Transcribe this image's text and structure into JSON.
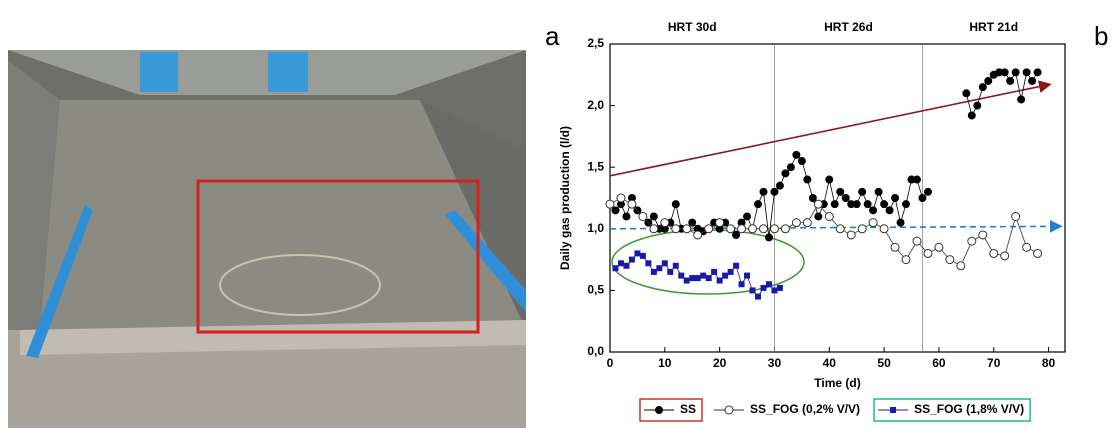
{
  "panel_labels": [
    "a",
    "b"
  ],
  "chart_data": {
    "type": "line",
    "y_label": "Daily gas production (l/d)",
    "x_label": "Time (d)",
    "annotations": [
      "HRT 30d",
      "HRT 26d",
      "HRT 21d"
    ],
    "period_bounds": [
      30,
      57
    ],
    "xlim": [
      0,
      83
    ],
    "xticks": [
      0,
      10,
      20,
      30,
      40,
      50,
      60,
      70,
      80
    ],
    "ylim": [
      0,
      2.5
    ],
    "yticks": [
      {
        "value": 0,
        "label": "0,0"
      },
      {
        "value": 0.5,
        "label": "0,5"
      },
      {
        "value": 1,
        "label": "1,0"
      },
      {
        "value": 1.5,
        "label": "1,5"
      },
      {
        "value": 2,
        "label": "2,0"
      },
      {
        "value": 2.5,
        "label": "2,5"
      }
    ],
    "trends": [
      {
        "color": "#8b1a1a",
        "x": [
          0,
          80
        ],
        "values": [
          1.43,
          2.17
        ]
      },
      {
        "color": "#1f7fd0",
        "x": [
          0,
          82
        ],
        "values": [
          1.0,
          1.02
        ]
      }
    ],
    "series": [
      {
        "name": "SS",
        "color": "#000000",
        "marker": "filled-circle",
        "box": "#c0392b",
        "x": [
          1,
          2,
          3,
          4,
          5,
          6,
          7,
          8,
          9,
          10,
          11,
          12,
          13,
          14,
          15,
          16,
          17,
          18,
          19,
          20,
          21,
          22,
          23,
          24,
          25,
          26,
          27,
          28,
          29,
          30,
          31,
          32,
          33,
          34,
          35,
          36,
          37,
          38,
          39,
          40,
          41,
          42,
          43,
          44,
          45,
          46,
          47,
          48,
          49,
          50,
          51,
          52,
          53,
          54,
          55,
          56,
          57,
          58,
          61,
          65,
          66,
          67,
          68,
          69,
          70,
          71,
          72,
          73,
          74,
          75,
          76,
          77,
          78
        ],
        "values": [
          1.15,
          1.2,
          1.1,
          1.25,
          1.15,
          1.1,
          1.05,
          1.1,
          1.0,
          1.0,
          1.05,
          1.2,
          1.0,
          1.0,
          1.05,
          1.0,
          0.98,
          1.0,
          1.05,
          1.0,
          1.05,
          1.0,
          0.95,
          1.05,
          1.1,
          1.0,
          1.2,
          1.3,
          0.93,
          1.3,
          1.35,
          1.45,
          1.5,
          1.6,
          1.55,
          1.4,
          1.25,
          1.1,
          1.2,
          1.4,
          1.2,
          1.3,
          1.25,
          1.2,
          1.2,
          1.3,
          1.2,
          1.15,
          1.3,
          1.2,
          1.15,
          1.25,
          1.05,
          1.2,
          1.4,
          1.4,
          1.25,
          1.3,
          null,
          2.1,
          1.92,
          2.0,
          2.15,
          2.2,
          2.25,
          2.27,
          2.27,
          2.2,
          2.27,
          2.05,
          2.27,
          2.2,
          2.27
        ]
      },
      {
        "name": "SS_FOG (0,2% V/V)",
        "color": "#333333",
        "marker": "open-circle",
        "box": null,
        "x": [
          0,
          2,
          4,
          6,
          8,
          10,
          12,
          14,
          16,
          18,
          20,
          22,
          24,
          26,
          28,
          30,
          32,
          34,
          36,
          38,
          40,
          42,
          44,
          46,
          48,
          50,
          52,
          54,
          56,
          58,
          60,
          62,
          64,
          66,
          68,
          70,
          72,
          74,
          76,
          78
        ],
        "values": [
          1.2,
          1.25,
          1.2,
          1.1,
          1.0,
          1.05,
          1.0,
          1.0,
          0.95,
          1.0,
          1.05,
          1.0,
          1.0,
          1.0,
          1.0,
          1.0,
          1.0,
          1.05,
          1.05,
          1.2,
          1.1,
          1.0,
          0.95,
          1.0,
          1.05,
          1.0,
          0.85,
          0.75,
          0.9,
          0.8,
          0.85,
          0.75,
          0.7,
          0.9,
          0.95,
          0.8,
          0.78,
          1.1,
          0.85,
          0.8
        ]
      },
      {
        "name": "SS_FOG (1,8% V/V)",
        "color": "#1a1aa8",
        "marker": "square",
        "box": "#1abc9c",
        "x": [
          1,
          2,
          3,
          4,
          5,
          6,
          7,
          8,
          9,
          10,
          11,
          12,
          13,
          14,
          15,
          16,
          17,
          18,
          19,
          20,
          21,
          22,
          23,
          24,
          25,
          26,
          27,
          28,
          29,
          30,
          31
        ],
        "values": [
          0.68,
          0.72,
          0.7,
          0.75,
          0.8,
          0.78,
          0.72,
          0.65,
          0.68,
          0.72,
          0.65,
          0.7,
          0.62,
          0.58,
          0.6,
          0.6,
          0.62,
          0.6,
          0.65,
          0.58,
          0.62,
          0.65,
          0.7,
          0.55,
          0.62,
          0.5,
          0.45,
          0.52,
          0.55,
          0.5,
          0.52
        ]
      }
    ]
  }
}
